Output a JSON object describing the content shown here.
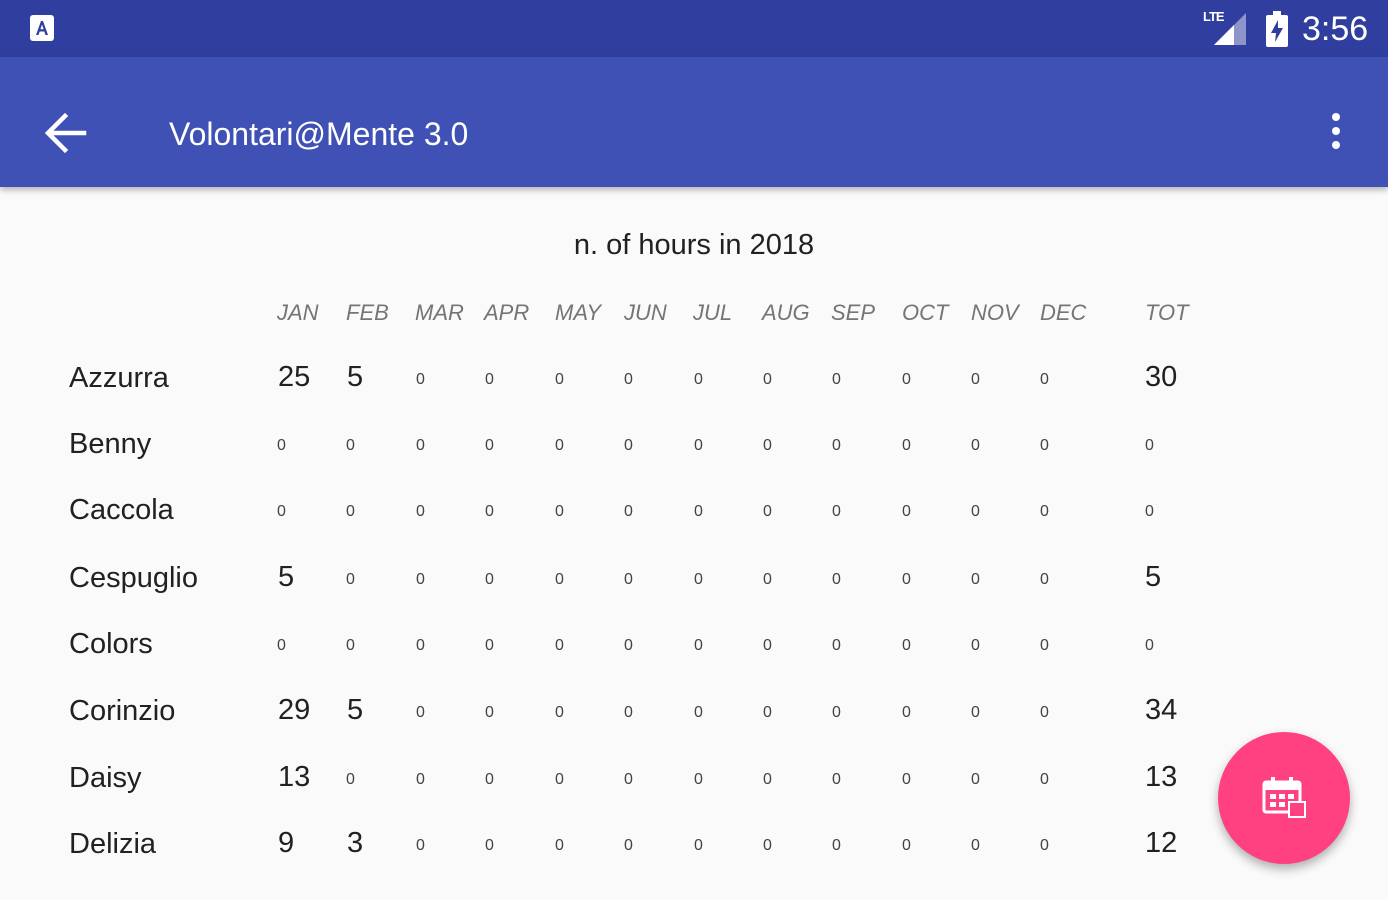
{
  "status_bar": {
    "time": "3:56",
    "network_label": "LTE",
    "icons": [
      "app-notification-icon",
      "lte-signal-icon",
      "battery-charging-icon"
    ]
  },
  "app_bar": {
    "title": "Volontari@Mente 3.0",
    "back_icon": "arrow-back-icon",
    "menu_icon": "more-vert-icon",
    "color": "#3f51b5",
    "status_color": "#303f9f"
  },
  "table": {
    "title": "n. of hours in 2018",
    "headers": [
      "JAN",
      "FEB",
      "MAR",
      "APR",
      "MAY",
      "JUN",
      "JUL",
      "AUG",
      "SEP",
      "OCT",
      "NOV",
      "DEC",
      "TOT"
    ],
    "rows": [
      {
        "name": "Azzurra",
        "values": [
          "25",
          "5",
          "0",
          "0",
          "0",
          "0",
          "0",
          "0",
          "0",
          "0",
          "0",
          "0"
        ],
        "total": "30"
      },
      {
        "name": "Benny",
        "values": [
          "0",
          "0",
          "0",
          "0",
          "0",
          "0",
          "0",
          "0",
          "0",
          "0",
          "0",
          "0"
        ],
        "total": "0"
      },
      {
        "name": "Caccola",
        "values": [
          "0",
          "0",
          "0",
          "0",
          "0",
          "0",
          "0",
          "0",
          "0",
          "0",
          "0",
          "0"
        ],
        "total": "0"
      },
      {
        "name": "Cespuglio",
        "values": [
          "5",
          "0",
          "0",
          "0",
          "0",
          "0",
          "0",
          "0",
          "0",
          "0",
          "0",
          "0"
        ],
        "total": "5"
      },
      {
        "name": "Colors",
        "values": [
          "0",
          "0",
          "0",
          "0",
          "0",
          "0",
          "0",
          "0",
          "0",
          "0",
          "0",
          "0"
        ],
        "total": "0"
      },
      {
        "name": "Corinzio",
        "values": [
          "29",
          "5",
          "0",
          "0",
          "0",
          "0",
          "0",
          "0",
          "0",
          "0",
          "0",
          "0"
        ],
        "total": "34"
      },
      {
        "name": "Daisy",
        "values": [
          "13",
          "0",
          "0",
          "0",
          "0",
          "0",
          "0",
          "0",
          "0",
          "0",
          "0",
          "0"
        ],
        "total": "13"
      },
      {
        "name": "Delizia",
        "values": [
          "9",
          "3",
          "0",
          "0",
          "0",
          "0",
          "0",
          "0",
          "0",
          "0",
          "0",
          "0"
        ],
        "total": "12"
      }
    ]
  },
  "fab": {
    "icon": "calendar-icon",
    "color": "#ff4081"
  }
}
